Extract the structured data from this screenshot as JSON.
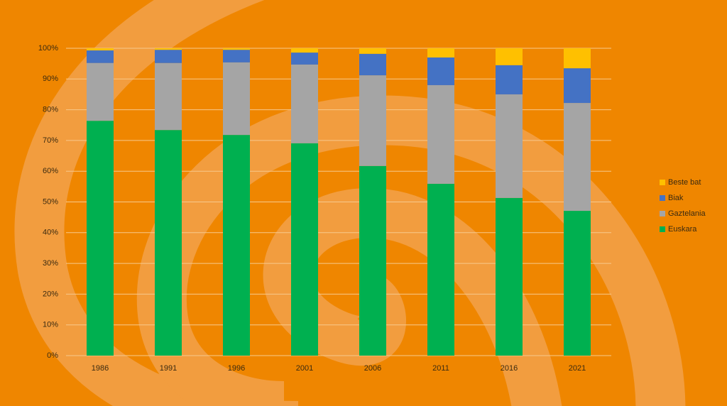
{
  "chart_data": {
    "type": "stacked-bar",
    "categories": [
      "1986",
      "1991",
      "1996",
      "2001",
      "2006",
      "2011",
      "2016",
      "2021"
    ],
    "series": [
      {
        "name": "Euskara",
        "color": "#00b050",
        "values": [
          76.4,
          73.4,
          71.8,
          69.1,
          61.7,
          55.9,
          51.3,
          47.1
        ]
      },
      {
        "name": "Gaztelania",
        "color": "#a5a5a5",
        "values": [
          18.8,
          21.8,
          23.6,
          25.6,
          29.5,
          32.1,
          33.7,
          35.1
        ]
      },
      {
        "name": "Biak",
        "color": "#4472c4",
        "values": [
          4.1,
          4.3,
          4.1,
          3.9,
          7.0,
          9.0,
          9.5,
          11.3
        ]
      },
      {
        "name": "Beste bat",
        "color": "#ffc000",
        "values": [
          0.7,
          0.5,
          0.5,
          1.4,
          1.8,
          3.0,
          5.5,
          6.5
        ]
      }
    ],
    "ylim": [
      0,
      100
    ],
    "yticks": [
      {
        "value": 0,
        "label": "0%"
      },
      {
        "value": 10,
        "label": "10%"
      },
      {
        "value": 20,
        "label": "20%"
      },
      {
        "value": 30,
        "label": "30%"
      },
      {
        "value": 40,
        "label": "40%"
      },
      {
        "value": 50,
        "label": "50%"
      },
      {
        "value": 60,
        "label": "60%"
      },
      {
        "value": 70,
        "label": "70%"
      },
      {
        "value": 80,
        "label": "80%"
      },
      {
        "value": 90,
        "label": "90%"
      },
      {
        "value": 100,
        "label": "100%"
      }
    ],
    "grid": true,
    "legend": "right"
  }
}
